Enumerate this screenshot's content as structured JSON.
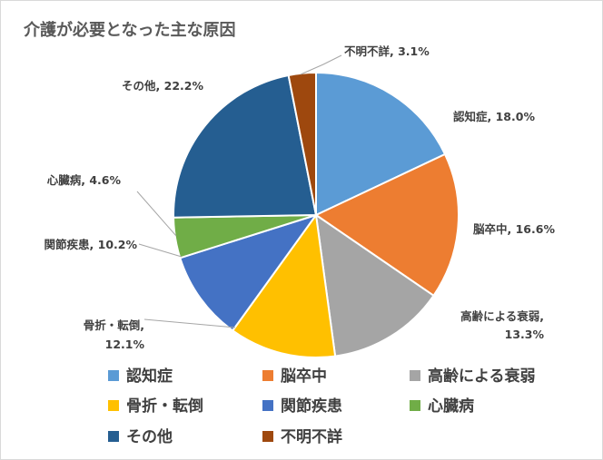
{
  "chart_data": {
    "type": "pie",
    "title": "介護が必要となった主な原因",
    "legend_position": "bottom",
    "slices": [
      {
        "name": "認知症",
        "value": 18.0,
        "label": "18.0%",
        "color": "#5b9bd5"
      },
      {
        "name": "脳卒中",
        "value": 16.6,
        "label": "16.6%",
        "color": "#ed7d31"
      },
      {
        "name": "高齢による衰弱",
        "value": 13.3,
        "label": "13.3%",
        "color": "#a5a5a5"
      },
      {
        "name": "骨折・転倒",
        "value": 12.1,
        "label": "12.1%",
        "color": "#ffc000"
      },
      {
        "name": "関節疾患",
        "value": 10.2,
        "label": "10.2%",
        "color": "#4472c4"
      },
      {
        "name": "心臓病",
        "value": 4.6,
        "label": "4.6%",
        "color": "#70ad47"
      },
      {
        "name": "その他",
        "value": 22.2,
        "label": "22.2%",
        "color": "#255e91"
      },
      {
        "name": "不明不詳",
        "value": 3.1,
        "label": "3.1%",
        "color": "#9e480e"
      }
    ]
  }
}
